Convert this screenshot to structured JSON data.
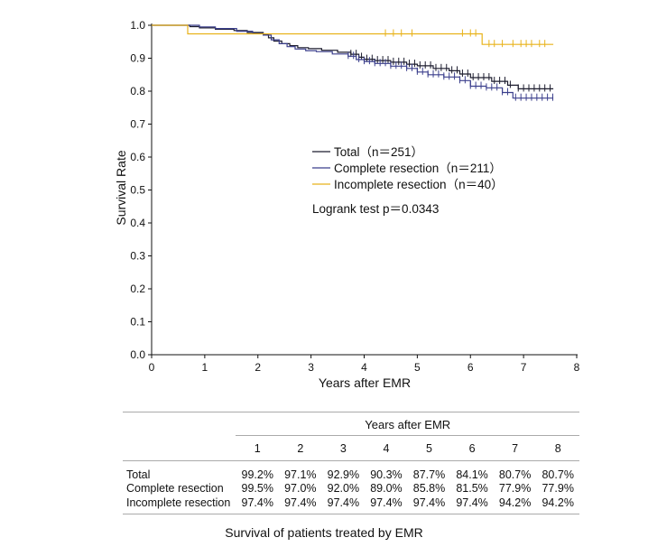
{
  "chart_data": {
    "type": "line",
    "subtype": "kaplan-meier",
    "xlabel": "Years after EMR",
    "ylabel": "Survival Rate",
    "xlim": [
      0,
      8
    ],
    "ylim": [
      0.0,
      1.0
    ],
    "xticks": [
      "0",
      "1",
      "2",
      "3",
      "4",
      "5",
      "6",
      "7",
      "8"
    ],
    "yticks": [
      "0.0",
      "0.1",
      "0.2",
      "0.3",
      "0.4",
      "0.5",
      "0.6",
      "0.7",
      "0.8",
      "0.9",
      "1.0"
    ],
    "grid": false,
    "legend_position": "center-right",
    "annotation": "Logrank test p＝0.0343",
    "series": [
      {
        "name": "Total（n＝251）",
        "color": "#1c1c2e",
        "steps": [
          [
            0,
            1.0
          ],
          [
            0.5,
            1.0
          ],
          [
            0.72,
            0.996
          ],
          [
            0.9,
            0.992
          ],
          [
            1.2,
            0.988
          ],
          [
            1.55,
            0.984
          ],
          [
            1.8,
            0.978
          ],
          [
            2.1,
            0.971
          ],
          [
            2.2,
            0.962
          ],
          [
            2.3,
            0.952
          ],
          [
            2.45,
            0.944
          ],
          [
            2.6,
            0.938
          ],
          [
            2.75,
            0.932
          ],
          [
            2.95,
            0.929
          ],
          [
            3.2,
            0.924
          ],
          [
            3.5,
            0.918
          ],
          [
            3.75,
            0.912
          ],
          [
            3.9,
            0.903
          ],
          [
            4.0,
            0.897
          ],
          [
            4.2,
            0.893
          ],
          [
            4.5,
            0.888
          ],
          [
            4.8,
            0.882
          ],
          [
            5.0,
            0.877
          ],
          [
            5.3,
            0.869
          ],
          [
            5.6,
            0.862
          ],
          [
            5.8,
            0.852
          ],
          [
            6.0,
            0.841
          ],
          [
            6.4,
            0.83
          ],
          [
            6.7,
            0.818
          ],
          [
            6.9,
            0.807
          ],
          [
            7.56,
            0.807
          ]
        ],
        "censor_x": [
          3.75,
          3.85,
          3.95,
          4.05,
          4.15,
          4.25,
          4.35,
          4.45,
          4.55,
          4.65,
          4.75,
          4.85,
          4.95,
          5.05,
          5.15,
          5.25,
          5.35,
          5.45,
          5.55,
          5.65,
          5.75,
          5.85,
          5.95,
          6.05,
          6.15,
          6.25,
          6.35,
          6.45,
          6.55,
          6.65,
          6.75,
          6.9,
          7.0,
          7.1,
          7.2,
          7.3,
          7.4,
          7.5
        ]
      },
      {
        "name": "Complete resection（n＝211）",
        "color": "#3b3f8c",
        "steps": [
          [
            0,
            1.0
          ],
          [
            0.6,
            1.0
          ],
          [
            0.9,
            0.995
          ],
          [
            1.2,
            0.99
          ],
          [
            1.6,
            0.982
          ],
          [
            1.9,
            0.975
          ],
          [
            2.1,
            0.97
          ],
          [
            2.25,
            0.956
          ],
          [
            2.4,
            0.944
          ],
          [
            2.55,
            0.935
          ],
          [
            2.7,
            0.928
          ],
          [
            2.9,
            0.923
          ],
          [
            3.1,
            0.92
          ],
          [
            3.4,
            0.913
          ],
          [
            3.7,
            0.906
          ],
          [
            3.85,
            0.896
          ],
          [
            4.0,
            0.89
          ],
          [
            4.2,
            0.884
          ],
          [
            4.5,
            0.876
          ],
          [
            4.8,
            0.869
          ],
          [
            5.0,
            0.858
          ],
          [
            5.2,
            0.85
          ],
          [
            5.5,
            0.843
          ],
          [
            5.8,
            0.832
          ],
          [
            6.0,
            0.815
          ],
          [
            6.3,
            0.81
          ],
          [
            6.6,
            0.796
          ],
          [
            6.8,
            0.779
          ],
          [
            7.56,
            0.779
          ]
        ],
        "censor_x": [
          3.7,
          3.8,
          3.9,
          4.0,
          4.1,
          4.2,
          4.3,
          4.4,
          4.5,
          4.6,
          4.7,
          4.8,
          4.9,
          5.0,
          5.1,
          5.2,
          5.3,
          5.4,
          5.5,
          5.6,
          5.7,
          5.8,
          5.9,
          6.0,
          6.1,
          6.2,
          6.3,
          6.4,
          6.5,
          6.6,
          6.7,
          6.85,
          6.95,
          7.05,
          7.15,
          7.25,
          7.35,
          7.45,
          7.55
        ]
      },
      {
        "name": "Incomplete resection（n＝40）",
        "color": "#e8b21a",
        "steps": [
          [
            0,
            1.0
          ],
          [
            0.68,
            1.0
          ],
          [
            0.68,
            0.974
          ],
          [
            6.22,
            0.974
          ],
          [
            6.22,
            0.942
          ],
          [
            7.56,
            0.942
          ]
        ],
        "censor_x": [
          4.4,
          4.55,
          4.7,
          4.9,
          5.85,
          6.0,
          6.1,
          6.35,
          6.45,
          6.6,
          6.8,
          6.95,
          7.05,
          7.15,
          7.3,
          7.4
        ]
      }
    ]
  },
  "table": {
    "header": "Years after EMR",
    "columns": [
      "1",
      "2",
      "3",
      "4",
      "5",
      "6",
      "7",
      "8"
    ],
    "rows": [
      {
        "label": "Total",
        "values": [
          "99.2%",
          "97.1%",
          "92.9%",
          "90.3%",
          "87.7%",
          "84.1%",
          "80.7%",
          "80.7%"
        ]
      },
      {
        "label": "Complete resection",
        "values": [
          "99.5%",
          "97.0%",
          "92.0%",
          "89.0%",
          "85.8%",
          "81.5%",
          "77.9%",
          "77.9%"
        ]
      },
      {
        "label": "Incomplete resection",
        "values": [
          "97.4%",
          "97.4%",
          "97.4%",
          "97.4%",
          "97.4%",
          "97.4%",
          "94.2%",
          "94.2%"
        ]
      }
    ]
  },
  "caption": "Survival of patients treated by EMR"
}
